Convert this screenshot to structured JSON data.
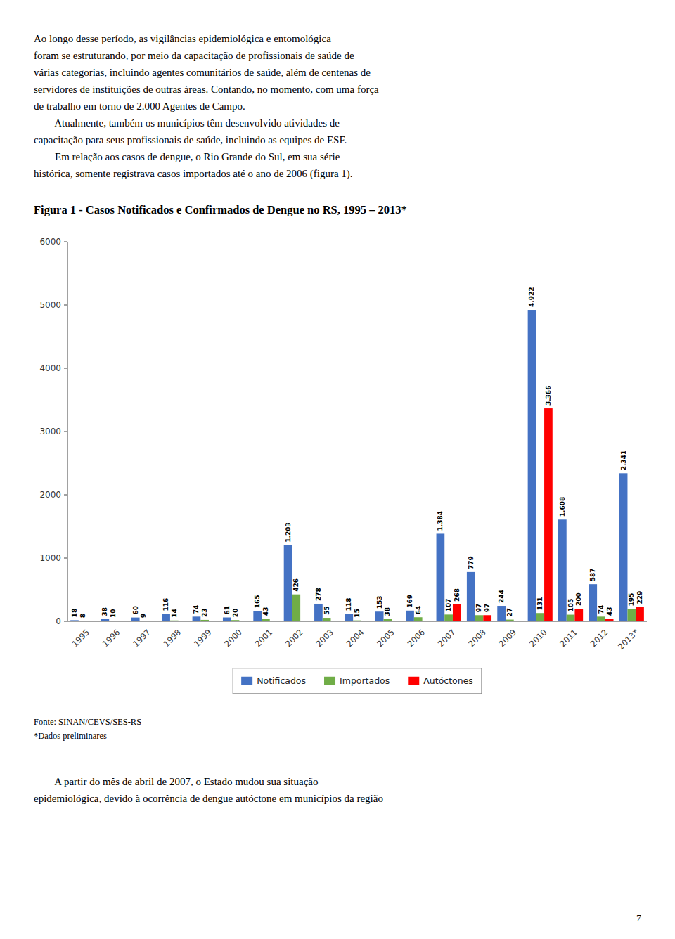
{
  "chart_data": {
    "type": "bar",
    "title": "Figura 1 - Casos Notificados e Confirmados de Dengue no RS, 1995 – 2013*",
    "categories": [
      "1995",
      "1996",
      "1997",
      "1998",
      "1999",
      "2000",
      "2001",
      "2002",
      "2003",
      "2004",
      "2005",
      "2006",
      "2007",
      "2008",
      "2009",
      "2010",
      "2011",
      "2012",
      "2013*"
    ],
    "series": [
      {
        "name": "Notificados",
        "color": "#4472C4",
        "values": [
          18,
          38,
          60,
          116,
          74,
          61,
          165,
          1203,
          278,
          118,
          153,
          169,
          1384,
          779,
          244,
          4922,
          1608,
          587,
          2341
        ],
        "value_labels": [
          "18",
          "38",
          "60",
          "116",
          "74",
          "61",
          "165",
          "1.203",
          "278",
          "118",
          "153",
          "169",
          "1.384",
          "779",
          "244",
          "4.922",
          "1.608",
          "587",
          "2.341"
        ]
      },
      {
        "name": "Importados",
        "color": "#70AD47",
        "values": [
          8,
          10,
          9,
          14,
          23,
          20,
          43,
          426,
          55,
          15,
          38,
          64,
          107,
          97,
          27,
          131,
          105,
          74,
          195
        ],
        "value_labels": [
          "8",
          "10",
          "9",
          "14",
          "23",
          "20",
          "43",
          "426",
          "55",
          "15",
          "38",
          "64",
          "107",
          "97",
          "27",
          "131",
          "105",
          "74",
          "195"
        ]
      },
      {
        "name": "Autóctones",
        "color": "#FF0000",
        "values": [
          0,
          0,
          0,
          0,
          0,
          0,
          0,
          0,
          0,
          0,
          0,
          0,
          268,
          97,
          0,
          3366,
          200,
          43,
          229
        ],
        "value_labels": [
          null,
          null,
          null,
          null,
          null,
          null,
          null,
          null,
          null,
          null,
          null,
          null,
          "268",
          "97",
          null,
          "3.366",
          "200",
          "43",
          "229"
        ]
      }
    ],
    "ylim": [
      0,
      6000
    ],
    "yticks": [
      0,
      1000,
      2000,
      3000,
      4000,
      5000,
      6000
    ],
    "grid": false,
    "legend": "bottom",
    "data_labels": true,
    "annotations": [
      "Ao longo desse período, as vigilâncias epidemiológica e entomológica",
      "foram se estruturando, por meio da capacitação de profissionais de saúde de",
      "várias categorias, incluindo agentes comunitários de saúde, além de centenas de",
      "servidores de instituições de outras áreas. Contando, no momento, com uma força",
      "de trabalho em torno de 2.000 Agentes de Campo.",
      "        Atualmente, também os municípios têm desenvolvido atividades de",
      "capacitação para seus profissionais de saúde, incluindo as equipes de ESF.",
      "        Em relação aos casos de dengue, o Rio Grande do Sul, em sua série",
      "histórica, somente registrava casos importados até o ano de 2006 (figura 1).",
      "Fonte: SINAN/CEVS/SES-RS",
      "*Dados preliminares",
      "        A partir do mês de abril de 2007, o Estado mudou sua situação",
      "epidemiológica, devido à ocorrência de dengue autóctone em municípios da região",
      "7"
    ]
  }
}
